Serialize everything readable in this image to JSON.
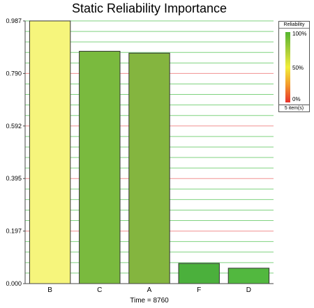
{
  "chart_data": {
    "type": "bar",
    "title": "Static Reliability Importance",
    "categories": [
      "B",
      "C",
      "A",
      "F",
      "D"
    ],
    "values": [
      0.987,
      0.873,
      0.866,
      0.076,
      0.058
    ],
    "bar_colors": [
      "#f6f57c",
      "#7aba3e",
      "#84b53f",
      "#4bb03c",
      "#52b83f"
    ],
    "yticks": [
      "0.000",
      "0.197",
      "0.395",
      "0.592",
      "0.790",
      "0.987"
    ],
    "ylim": [
      0,
      0.987
    ],
    "xlabel": "Time = 8760",
    "grid": true
  },
  "legend": {
    "title": "Reliability",
    "ticks": [
      "100%",
      "50%",
      "0%"
    ],
    "footer": "5 item(s)"
  },
  "colors": {
    "grid_green": "#7fd27f",
    "grid_red": "#f09090",
    "axis": "#444444"
  }
}
